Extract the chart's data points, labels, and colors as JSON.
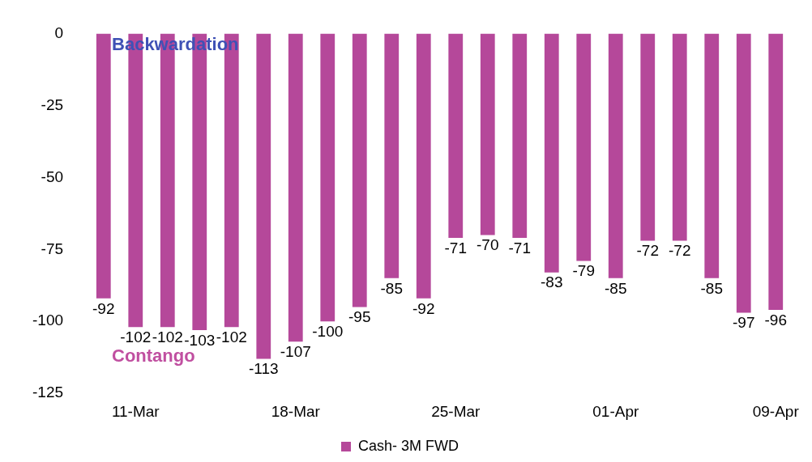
{
  "chart_data": {
    "type": "bar",
    "categories": [
      null,
      "11-Mar",
      null,
      null,
      null,
      null,
      "18-Mar",
      null,
      null,
      null,
      null,
      "25-Mar",
      null,
      null,
      null,
      null,
      "01-Apr",
      null,
      null,
      null,
      null,
      "09-Apr"
    ],
    "series": [
      {
        "name": "Cash- 3M FWD",
        "color": "#b5489a",
        "values": [
          -92,
          -102,
          -102,
          -103,
          -102,
          -113,
          -107,
          -100,
          -95,
          -85,
          -92,
          -71,
          -70,
          -71,
          -83,
          -79,
          -85,
          -72,
          -72,
          -85,
          -97,
          -96
        ]
      }
    ],
    "ylim": [
      -125,
      0
    ],
    "yticks": [
      0,
      -25,
      -50,
      -75,
      -100,
      -125
    ],
    "annotations": [
      "Backwardation",
      "Contango"
    ],
    "data_labels": true,
    "grid": false,
    "legend": "bottom"
  }
}
